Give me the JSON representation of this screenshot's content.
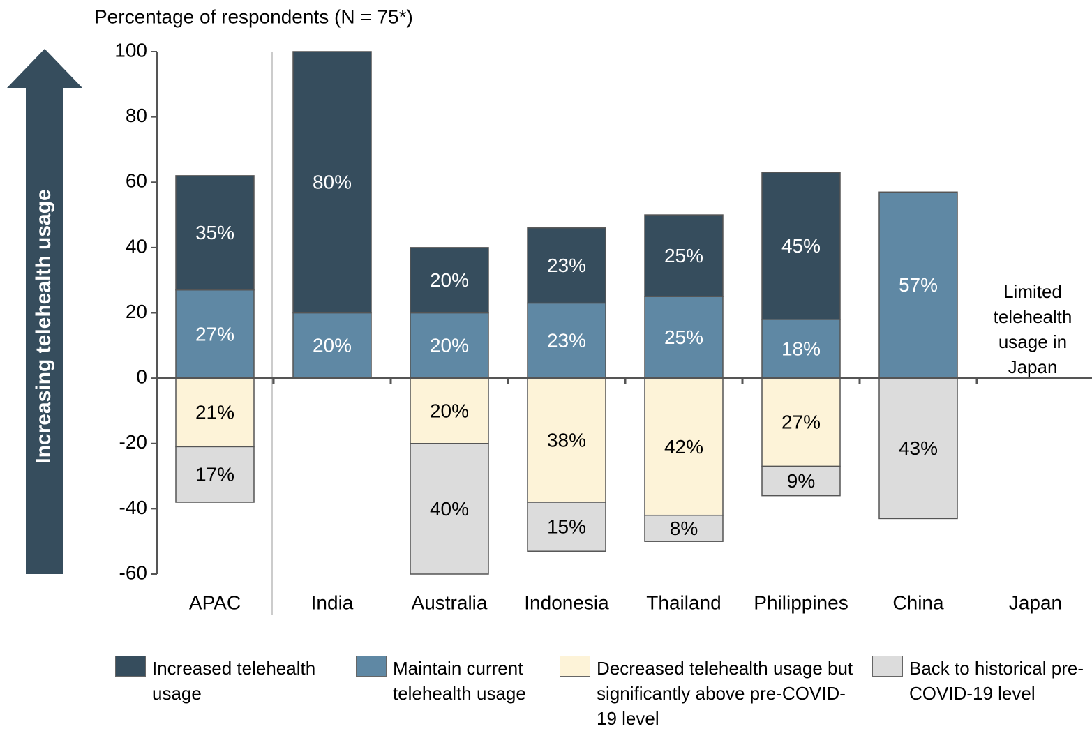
{
  "chart_data": {
    "type": "stacked_bar",
    "axis_title": "Percentage of respondents (N = 75*)",
    "arrow_label": "Increasing telehealth usage",
    "annotation_lines": [
      "Limited",
      "telehealth",
      "usage in",
      "Japan"
    ],
    "categories": [
      "APAC",
      "India",
      "Australia",
      "Indonesia",
      "Thailand",
      "Philippines",
      "China",
      "Japan"
    ],
    "series": [
      {
        "name": "Increased telehealth usage",
        "color": "#364d5d",
        "label_color": "#ffffff",
        "values": [
          35,
          80,
          20,
          23,
          25,
          45,
          null,
          null
        ],
        "value_labels": [
          "35%",
          "80%",
          "20%",
          "23%",
          "25%",
          "45%",
          null,
          null
        ]
      },
      {
        "name": "Maintain current telehealth usage",
        "color": "#5f88a4",
        "label_color": "#ffffff",
        "values": [
          27,
          20,
          20,
          23,
          25,
          18,
          57,
          null
        ],
        "value_labels": [
          "27%",
          "20%",
          "20%",
          "23%",
          "25%",
          "18%",
          "57%",
          null
        ]
      },
      {
        "name": "Decreased telehealth usage but significantly above pre-COVID-19 level",
        "color": "#fdf3d8",
        "label_color": "#000000",
        "values": [
          -21,
          null,
          -20,
          -38,
          -42,
          -27,
          null,
          null
        ],
        "value_labels": [
          "21%",
          null,
          "20%",
          "38%",
          "42%",
          "27%",
          null,
          null
        ]
      },
      {
        "name": "Back to historical pre-COVID-19 level",
        "color": "#dcdcdc",
        "label_color": "#000000",
        "values": [
          -17,
          null,
          -40,
          -15,
          -8,
          -9,
          -43,
          null
        ],
        "value_labels": [
          "17%",
          null,
          "40%",
          "15%",
          "8%",
          "9%",
          "43%",
          null
        ]
      }
    ],
    "ylim": [
      -60,
      100
    ],
    "yticks": [
      -60,
      -40,
      -20,
      0,
      20,
      40,
      60,
      80,
      100
    ]
  }
}
